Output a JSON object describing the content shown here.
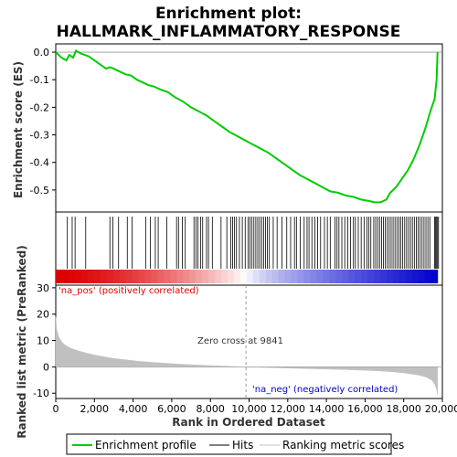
{
  "chart_data": {
    "type": "line",
    "title_line1": "Enrichment plot:",
    "title_line2": "HALLMARK_INFLAMMATORY_RESPONSE",
    "top_panel": {
      "ylabel": "Enrichment score (ES)",
      "ylim": [
        -0.58,
        0.03
      ],
      "yticks": [
        "0.0",
        "-0.1",
        "-0.2",
        "-0.3",
        "-0.4",
        "-0.5"
      ],
      "ytick_values": [
        0.0,
        -0.1,
        -0.2,
        -0.3,
        -0.4,
        -0.5
      ],
      "series_name": "Enrichment profile",
      "color": "#00cc00",
      "x": [
        0,
        300,
        550,
        700,
        900,
        1050,
        1300,
        1500,
        1700,
        2000,
        2300,
        2600,
        2800,
        3000,
        3300,
        3600,
        3900,
        4200,
        4500,
        4800,
        5100,
        5400,
        5800,
        6200,
        6600,
        7000,
        7400,
        7800,
        8200,
        8600,
        9000,
        9400,
        9800,
        10200,
        10600,
        11000,
        11400,
        11800,
        12200,
        12600,
        13000,
        13400,
        13800,
        14200,
        14600,
        15000,
        15400,
        15800,
        16200,
        16500,
        16800,
        17100,
        17300,
        17600,
        17900,
        18200,
        18500,
        18800,
        19100,
        19400,
        19600,
        19700,
        19750
      ],
      "y": [
        0.0,
        -0.02,
        -0.03,
        -0.01,
        -0.02,
        0.005,
        -0.005,
        -0.01,
        -0.015,
        -0.03,
        -0.045,
        -0.06,
        -0.055,
        -0.06,
        -0.07,
        -0.08,
        -0.085,
        -0.1,
        -0.11,
        -0.12,
        -0.125,
        -0.135,
        -0.145,
        -0.165,
        -0.18,
        -0.2,
        -0.215,
        -0.23,
        -0.25,
        -0.27,
        -0.29,
        -0.305,
        -0.32,
        -0.335,
        -0.35,
        -0.365,
        -0.385,
        -0.405,
        -0.425,
        -0.445,
        -0.46,
        -0.475,
        -0.49,
        -0.505,
        -0.51,
        -0.52,
        -0.525,
        -0.535,
        -0.54,
        -0.545,
        -0.545,
        -0.535,
        -0.51,
        -0.49,
        -0.46,
        -0.43,
        -0.39,
        -0.34,
        -0.28,
        -0.21,
        -0.17,
        -0.1,
        0.0
      ]
    },
    "hits_panel": {
      "series_name": "Hits",
      "hit_ranks": [
        600,
        850,
        1000,
        1550,
        2800,
        2950,
        3250,
        3700,
        3950,
        4650,
        4900,
        5150,
        5300,
        5750,
        6250,
        6350,
        6550,
        6700,
        7150,
        7250,
        7350,
        7500,
        7600,
        7800,
        7900,
        8100,
        8550,
        8850,
        9050,
        9150,
        9250,
        9350,
        9500,
        9650,
        9800,
        9950,
        10050,
        10150,
        10250,
        10350,
        10450,
        10550,
        10650,
        10750,
        10850,
        10950,
        11050,
        11250,
        11450,
        11700,
        11950,
        12150,
        12350,
        12450,
        12650,
        12850,
        13000,
        13100,
        13250,
        13400,
        13550,
        13700,
        13900,
        14050,
        14200,
        14450,
        14550,
        14650,
        14800,
        14950,
        15100,
        15250,
        15400,
        15500,
        15650,
        15800,
        15950,
        16100,
        16200,
        16300,
        16450,
        16550,
        16650,
        16750,
        16850,
        16950,
        17050,
        17150,
        17250,
        17350,
        17450,
        17550,
        17650,
        17750,
        17850,
        17950,
        18050,
        18150,
        18250,
        18350,
        18450,
        18550,
        18650,
        18750,
        18850,
        18950,
        19050,
        19150,
        19250,
        19350,
        19600,
        19650,
        19700,
        19750,
        19800
      ]
    },
    "bottom_panel": {
      "ylabel": "Ranked list metric (PreRanked)",
      "xlabel": "Rank in Dataset",
      "ylim": [
        -12,
        31
      ],
      "yticks": [
        "30",
        "20",
        "10",
        "0",
        "-10"
      ],
      "ytick_values": [
        30,
        20,
        10,
        0,
        -10
      ],
      "series_name": "Ranking metric scores",
      "color": "#c0c0c0",
      "x": [
        0,
        50,
        150,
        300,
        500,
        800,
        1200,
        1600,
        2000,
        2500,
        3000,
        3600,
        4200,
        5000,
        6000,
        7000,
        8000,
        9000,
        9841,
        11000,
        12000,
        13000,
        14000,
        15000,
        16000,
        16800,
        17500,
        18000,
        18500,
        18900,
        19200,
        19450,
        19600,
        19700,
        19750
      ],
      "y": [
        19,
        14,
        11.5,
        9.5,
        8.2,
        7,
        6,
        5.2,
        4.5,
        3.8,
        3.2,
        2.7,
        2.2,
        1.7,
        1.2,
        0.8,
        0.5,
        0.2,
        0.0,
        -0.25,
        -0.45,
        -0.65,
        -0.85,
        -1.05,
        -1.3,
        -1.55,
        -1.9,
        -2.3,
        -2.8,
        -3.3,
        -4,
        -5,
        -6.5,
        -8.5,
        -10.5
      ],
      "zero_cross_label": "Zero cross at 9841",
      "zero_cross_rank": 9841,
      "pos_label": "'na_pos' (positively correlated)",
      "neg_label": "'na_neg' (negatively correlated)",
      "pos_color": "#dd0000",
      "neg_color": "#0000cc"
    },
    "x_axis": {
      "xlim": [
        0,
        20000
      ],
      "xticks": [
        "0",
        "2,000",
        "4,000",
        "6,000",
        "8,000",
        "10,000",
        "12,000",
        "14,000",
        "16,000",
        "18,000",
        "20,000"
      ],
      "xtick_values": [
        0,
        2000,
        4000,
        6000,
        8000,
        10000,
        12000,
        14000,
        16000,
        18000,
        20000
      ],
      "xlabel": "Rank in Ordered Dataset"
    },
    "legend": {
      "items": [
        "Enrichment profile",
        "Hits",
        "Ranking metric scores"
      ],
      "colors": [
        "#00cc00",
        "#000000",
        "#c0c0c0"
      ],
      "placement": "bottom"
    },
    "grid": false
  }
}
